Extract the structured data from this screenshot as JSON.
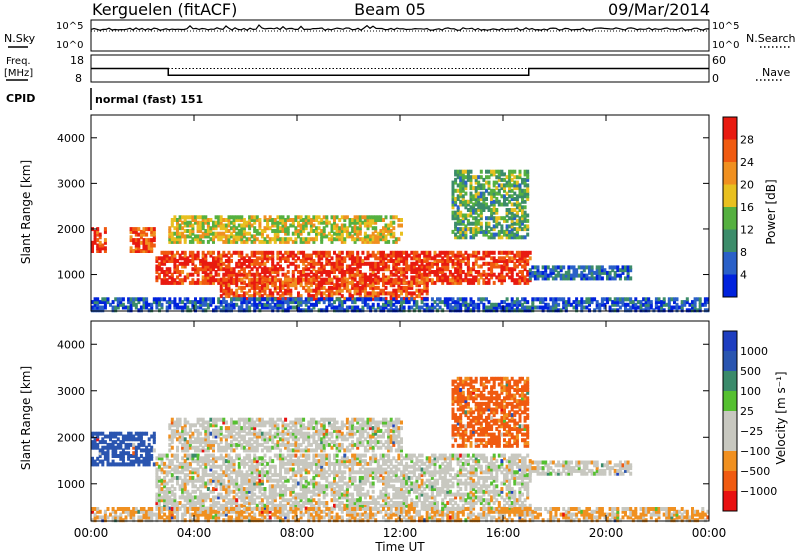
{
  "header": {
    "station": "Kerguelen (fitACF)",
    "beam": "Beam 05",
    "date": "09/Mar/2014"
  },
  "side_labels": {
    "nsky": "N.Sky",
    "nsearch": "N.Search",
    "freq_line1": "Freq.",
    "freq_line2": "[MHz]",
    "nave": "Nave",
    "cpid": "CPID"
  },
  "cpid_text": "normal (fast) 151",
  "x_axis": {
    "label": "Time UT",
    "ticks": [
      "00:00",
      "04:00",
      "08:00",
      "12:00",
      "16:00",
      "20:00",
      "00:00"
    ]
  },
  "colors": {
    "power": [
      "#0022dd",
      "#2a60c8",
      "#3c8c6a",
      "#55b040",
      "#e8c020",
      "#f09020",
      "#f05a10",
      "#e81a10"
    ],
    "velocity": [
      "#e81010",
      "#f05a10",
      "#f09020",
      "#c8c8c0",
      "#c8c8c0",
      "#55c030",
      "#3a8a6a",
      "#2a55b0",
      "#1e3ec0"
    ]
  },
  "chart_data": [
    {
      "type": "line",
      "name": "noise",
      "left_axis": {
        "label": "N.Sky",
        "ticks": [
          "10^5",
          "10^0"
        ]
      },
      "right_axis": {
        "label": "N.Search",
        "ticks": [
          "10^5",
          "10^0"
        ]
      }
    },
    {
      "type": "line",
      "name": "freq-nave",
      "left_axis": {
        "label": "Freq. [MHz]",
        "ticks": [
          "18",
          "8"
        ],
        "ylim": [
          8,
          18
        ]
      },
      "right_axis": {
        "label": "Nave",
        "ticks": [
          "60",
          "0"
        ],
        "ylim": [
          0,
          60
        ]
      },
      "freq_mhz": [
        {
          "start_hour": 0,
          "end_hour": 3,
          "value": 13
        },
        {
          "start_hour": 3,
          "end_hour": 17,
          "value": 10.5
        },
        {
          "start_hour": 17,
          "end_hour": 24,
          "value": 13
        }
      ],
      "nave": 30
    },
    {
      "type": "heatmap",
      "name": "power",
      "ylabel": "Slant Range [km]",
      "xlabel": "Time UT",
      "xlim": [
        0,
        24
      ],
      "ylim": [
        200,
        4500
      ],
      "yticks": [
        1000,
        2000,
        3000,
        4000
      ],
      "colorbar": {
        "label": "Power [dB]",
        "ticks": [
          "28",
          "24",
          "20",
          "16",
          "12",
          "8",
          "4"
        ]
      },
      "features": [
        {
          "t0": 0,
          "t1": 0.6,
          "r0": 1500,
          "r1": 2000,
          "level": 0.9
        },
        {
          "t0": 1.5,
          "t1": 2.5,
          "r0": 1500,
          "r1": 2000,
          "level": 0.85
        },
        {
          "t0": 2.5,
          "t1": 17,
          "r0": 800,
          "r1": 1500,
          "level": 0.9
        },
        {
          "t0": 5.0,
          "t1": 13,
          "r0": 450,
          "r1": 900,
          "level": 0.85
        },
        {
          "t0": 3.0,
          "t1": 12,
          "r0": 1700,
          "r1": 2300,
          "level": 0.55
        },
        {
          "t0": 14,
          "t1": 17,
          "r0": 1800,
          "r1": 3300,
          "level": 0.4
        },
        {
          "t0": 17,
          "t1": 21,
          "r0": 900,
          "r1": 1200,
          "level": 0.2
        },
        {
          "t0": 0,
          "t1": 24,
          "r0": 200,
          "r1": 500,
          "level": 0.15
        }
      ]
    },
    {
      "type": "heatmap",
      "name": "velocity",
      "ylabel": "Slant Range [km]",
      "xlabel": "Time UT",
      "xlim": [
        0,
        24
      ],
      "ylim": [
        200,
        4500
      ],
      "yticks": [
        1000,
        2000,
        3000,
        4000
      ],
      "colorbar": {
        "label": "Velocity [m s⁻¹]",
        "ticks": [
          "1000",
          "500",
          "100",
          "25",
          "−25",
          "−100",
          "−500",
          "−1000"
        ]
      },
      "features": [
        {
          "t0": 0,
          "t1": 2.5,
          "r0": 1400,
          "r1": 2100,
          "v": 150
        },
        {
          "t0": 2.5,
          "t1": 17,
          "r0": 450,
          "r1": 1600,
          "v": 0
        },
        {
          "t0": 3.0,
          "t1": 12,
          "r0": 1700,
          "r1": 2400,
          "v": 0
        },
        {
          "t0": 14,
          "t1": 17,
          "r0": 1800,
          "r1": 3300,
          "v": -120
        },
        {
          "t0": 17,
          "t1": 21,
          "r0": 1200,
          "r1": 1500,
          "v": 0
        },
        {
          "t0": 0,
          "t1": 24,
          "r0": 200,
          "r1": 500,
          "v": -30
        }
      ]
    }
  ]
}
